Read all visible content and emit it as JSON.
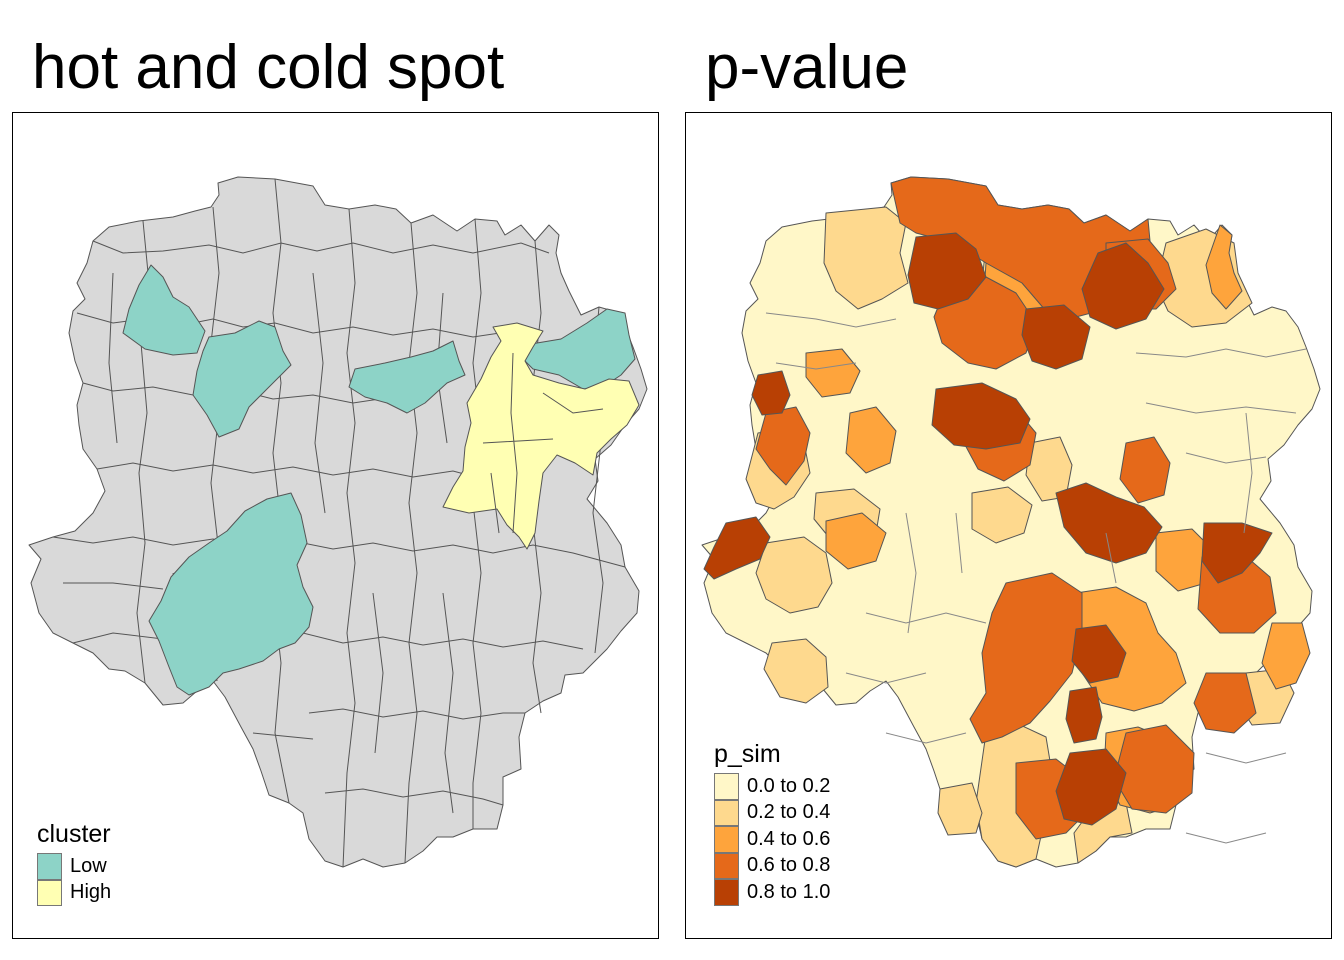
{
  "left_panel": {
    "title": "hot and cold spot",
    "legend": {
      "title": "cluster",
      "items": [
        {
          "label": "Low",
          "color": "#8dd3c7"
        },
        {
          "label": "High",
          "color": "#ffffb3"
        }
      ]
    },
    "base_color": "#d9d9d9"
  },
  "right_panel": {
    "title": "p-value",
    "legend": {
      "title": "p_sim",
      "items": [
        {
          "label": "0.0 to 0.2",
          "color": "#fff7c8"
        },
        {
          "label": "0.2 to 0.4",
          "color": "#fed98e"
        },
        {
          "label": "0.4 to 0.6",
          "color": "#fea43c"
        },
        {
          "label": "0.6 to 0.8",
          "color": "#e5691a"
        },
        {
          "label": "0.8 to 1.0",
          "color": "#b84004"
        }
      ]
    }
  }
}
